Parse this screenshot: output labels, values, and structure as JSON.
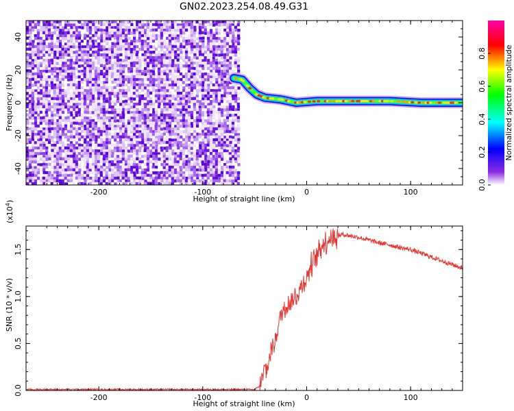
{
  "figure": {
    "title": "GN02.2023.254.08.49.G31"
  },
  "chart_data": [
    {
      "type": "heatmap",
      "xlabel": "Height of straight line (km)",
      "ylabel": "Frequency (Hz)",
      "xlim": [
        -270,
        150
      ],
      "ylim": [
        -50,
        50
      ],
      "xticks": [
        -200,
        -100,
        0,
        100
      ],
      "yticks": [
        -40,
        -20,
        0,
        20,
        40
      ],
      "noise_region_x": [
        -270,
        -65
      ],
      "ridge_points": [
        {
          "x": -70,
          "y": 15
        },
        {
          "x": -62,
          "y": 14
        },
        {
          "x": -55,
          "y": 9
        },
        {
          "x": -48,
          "y": 5
        },
        {
          "x": -40,
          "y": 3
        },
        {
          "x": -25,
          "y": 2
        },
        {
          "x": -10,
          "y": 0
        },
        {
          "x": 10,
          "y": 1
        },
        {
          "x": 40,
          "y": 1
        },
        {
          "x": 80,
          "y": 1
        },
        {
          "x": 110,
          "y": 0
        },
        {
          "x": 150,
          "y": 0
        }
      ],
      "colorbar": {
        "label": "Normalized spectral amplitude",
        "range": [
          0,
          1
        ],
        "ticks": [
          0.0,
          0.2,
          0.4,
          0.6,
          0.8
        ],
        "tick_labels": [
          "0.0",
          "0.2",
          "0.4",
          "0.6",
          "0.8"
        ],
        "colors": [
          "#ffffff",
          "#8a2be2",
          "#0000ff",
          "#00ffff",
          "#00ff00",
          "#ffff00",
          "#ff0000",
          "#ff00ff"
        ]
      }
    },
    {
      "type": "line",
      "xlabel": "Height of straight line (km)",
      "ylabel": "SNR (10 * v/v)",
      "y_multiplier_label": "(x10",
      "y_multiplier_exp": "4",
      "xlim": [
        -270,
        150
      ],
      "ylim": [
        0,
        1.75
      ],
      "xticks": [
        -200,
        -100,
        0,
        100
      ],
      "yticks": [
        0.0,
        0.5,
        1.0,
        1.5
      ],
      "ytick_labels": [
        "0.0",
        "0.5",
        "1.0",
        "1.5"
      ],
      "series": [
        {
          "color": "#e8332e",
          "x": [
            -270,
            -200,
            -100,
            -50,
            -45,
            -42,
            -40,
            -38,
            -35,
            -30,
            -25,
            -20,
            -15,
            -10,
            -5,
            0,
            5,
            10,
            15,
            20,
            25,
            30,
            35,
            40,
            50,
            60,
            70,
            80,
            90,
            100,
            110,
            120,
            130,
            140,
            150
          ],
          "y": [
            0.01,
            0.01,
            0.01,
            0.01,
            0.05,
            0.15,
            0.25,
            0.2,
            0.4,
            0.55,
            0.8,
            0.9,
            0.95,
            1.0,
            1.1,
            1.2,
            1.35,
            1.45,
            1.55,
            1.6,
            1.63,
            1.65,
            1.66,
            1.65,
            1.63,
            1.6,
            1.57,
            1.55,
            1.52,
            1.5,
            1.46,
            1.42,
            1.38,
            1.34,
            1.3
          ],
          "noise_amplitude": 0.08
        }
      ]
    }
  ]
}
